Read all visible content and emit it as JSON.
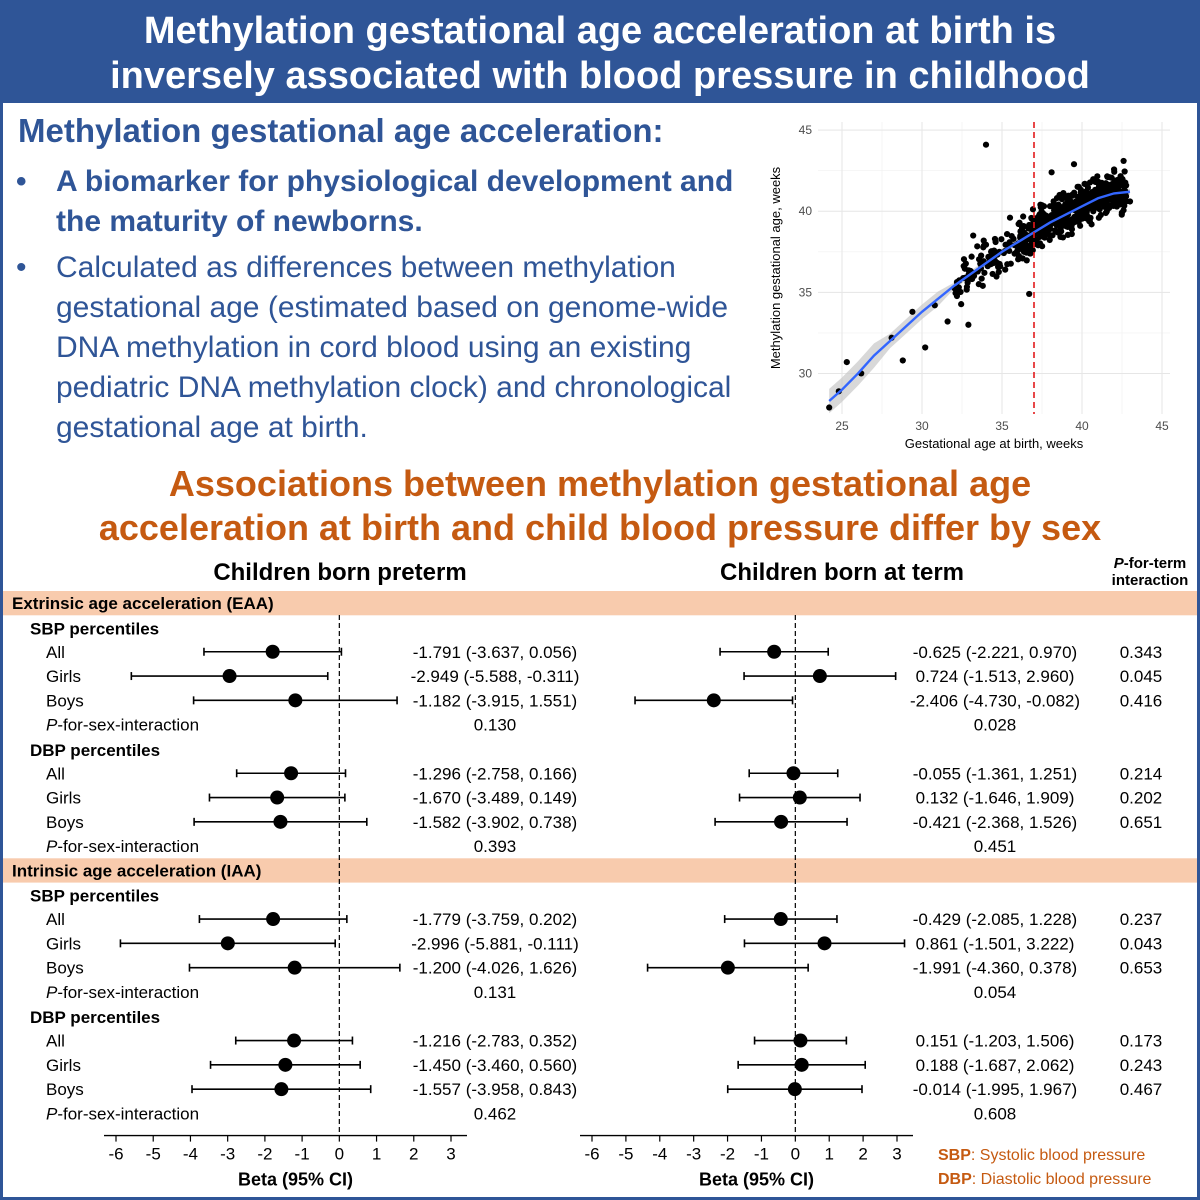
{
  "header": {
    "title_line1": "Methylation gestational age acceleration at birth is",
    "title_line2": "inversely associated with blood pressure in childhood"
  },
  "intro": {
    "title": "Methylation gestational age acceleration:",
    "bullet_symbol": "•",
    "bullet1": "A biomarker for physiological development and the maturity of newborns.",
    "bullet2": "Calculated as differences between methylation gestational age (estimated based on genome-wide DNA methylation in cord blood using an existing pediatric DNA methylation clock) and chronological gestational age at birth."
  },
  "section_title_line1": "Associations between methylation gestational age",
  "section_title_line2": "acceleration at birth and child blood pressure differ by sex",
  "legend": {
    "sbp_abbr": "SBP",
    "sbp_text": ": Systolic blood pressure",
    "dbp_abbr": "DBP",
    "dbp_text": ": Diastolic blood pressure"
  },
  "colors": {
    "brand_blue": "#2f5597",
    "accent_orange": "#c55a11",
    "band_fill": "#f8cbad",
    "fit_line": "#3366ff",
    "threshold_line": "#e31a1c"
  },
  "chart_data": [
    {
      "type": "scatter",
      "title": "",
      "xlabel": "Gestational age at birth, weeks",
      "ylabel": "Methylation gestational age, weeks",
      "xlim": [
        23.5,
        45.5
      ],
      "ylim": [
        27.5,
        45.5
      ],
      "xticks": [
        25,
        30,
        35,
        40,
        45
      ],
      "yticks": [
        30,
        35,
        40,
        45
      ],
      "grid": true,
      "reference_line_x": 37,
      "smooth_fit": {
        "x": [
          24.2,
          25,
          26,
          27,
          28,
          29,
          30,
          31,
          32,
          33,
          34,
          35,
          36,
          37,
          38,
          39,
          40,
          41,
          42,
          43
        ],
        "y": [
          28.3,
          29.0,
          30.0,
          31.1,
          32.0,
          32.9,
          33.8,
          34.6,
          35.4,
          36.1,
          36.8,
          37.5,
          38.1,
          38.7,
          39.3,
          39.8,
          40.3,
          40.8,
          41.1,
          41.2
        ]
      },
      "points_listed": [
        [
          24.2,
          27.9
        ],
        [
          24.8,
          28.9
        ],
        [
          25.3,
          30.7
        ],
        [
          26.2,
          30.0
        ],
        [
          28.1,
          32.2
        ],
        [
          28.8,
          30.8
        ],
        [
          29.4,
          33.8
        ],
        [
          30.2,
          31.6
        ],
        [
          30.8,
          34.2
        ],
        [
          31.6,
          33.2
        ],
        [
          32.3,
          35.3
        ],
        [
          32.9,
          33.0
        ],
        [
          33.1,
          37.2
        ],
        [
          33.8,
          35.4
        ],
        [
          34.0,
          44.1
        ],
        [
          34.6,
          38.1
        ],
        [
          35.2,
          36.4
        ],
        [
          35.8,
          37.9
        ],
        [
          36.3,
          39.0
        ],
        [
          36.8,
          37.6
        ],
        [
          37.4,
          40.4
        ],
        [
          38.0,
          38.9
        ],
        [
          38.6,
          41.0
        ],
        [
          39.2,
          40.3
        ],
        [
          39.8,
          41.5
        ],
        [
          40.3,
          40.0
        ],
        [
          40.9,
          41.8
        ],
        [
          41.5,
          40.5
        ],
        [
          42.1,
          41.7
        ],
        [
          42.6,
          43.1
        ],
        [
          43.0,
          40.6
        ],
        [
          38.1,
          42.4
        ],
        [
          39.5,
          42.9
        ],
        [
          33.2,
          38.5
        ],
        [
          35.5,
          39.6
        ],
        [
          36.7,
          34.9
        ]
      ],
      "dense_cloud_note_free": true
    },
    {
      "type": "forest",
      "xlabel": "Beta (95% CI)",
      "xlim": [
        -6,
        3
      ],
      "xticks": [
        -6,
        -5,
        -4,
        -3,
        -2,
        -1,
        0,
        1,
        2,
        3
      ],
      "column_headers": {
        "preterm": "Children born preterm",
        "term": "Children born at term",
        "p_term_1": "P",
        "p_term_2": "-for-term",
        "p_term_3": "interaction"
      },
      "sections": [
        {
          "title": "Extrinsic age acceleration (EAA)",
          "groups": [
            {
              "name": "SBP percentiles",
              "rows": [
                {
                  "label": "All",
                  "preterm": {
                    "est": -1.791,
                    "lo": -3.637,
                    "hi": 0.056,
                    "text": "-1.791 (-3.637, 0.056)"
                  },
                  "term": {
                    "est": -0.625,
                    "lo": -2.221,
                    "hi": 0.97,
                    "text": "-0.625 (-2.221, 0.970)"
                  },
                  "p_term": "0.343"
                },
                {
                  "label": "Girls",
                  "preterm": {
                    "est": -2.949,
                    "lo": -5.588,
                    "hi": -0.311,
                    "text": "-2.949 (-5.588, -0.311)"
                  },
                  "term": {
                    "est": 0.724,
                    "lo": -1.513,
                    "hi": 2.96,
                    "text": "0.724 (-1.513, 2.960)"
                  },
                  "p_term": "0.045"
                },
                {
                  "label": "Boys",
                  "preterm": {
                    "est": -1.182,
                    "lo": -3.915,
                    "hi": 1.551,
                    "text": "-1.182 (-3.915, 1.551)"
                  },
                  "term": {
                    "est": -2.406,
                    "lo": -4.73,
                    "hi": -0.082,
                    "text": "-2.406 (-4.730, -0.082)"
                  },
                  "p_term": "0.416"
                }
              ],
              "p_sex": {
                "label_p": "P",
                "label_rest": "-for-sex-interaction",
                "preterm": "0.130",
                "term": "0.028"
              }
            },
            {
              "name": "DBP percentiles",
              "rows": [
                {
                  "label": "All",
                  "preterm": {
                    "est": -1.296,
                    "lo": -2.758,
                    "hi": 0.166,
                    "text": "-1.296 (-2.758, 0.166)"
                  },
                  "term": {
                    "est": -0.055,
                    "lo": -1.361,
                    "hi": 1.251,
                    "text": "-0.055 (-1.361, 1.251)"
                  },
                  "p_term": "0.214"
                },
                {
                  "label": "Girls",
                  "preterm": {
                    "est": -1.67,
                    "lo": -3.489,
                    "hi": 0.149,
                    "text": "-1.670 (-3.489, 0.149)"
                  },
                  "term": {
                    "est": 0.132,
                    "lo": -1.646,
                    "hi": 1.909,
                    "text": "0.132 (-1.646, 1.909)"
                  },
                  "p_term": "0.202"
                },
                {
                  "label": "Boys",
                  "preterm": {
                    "est": -1.582,
                    "lo": -3.902,
                    "hi": 0.738,
                    "text": "-1.582 (-3.902, 0.738)"
                  },
                  "term": {
                    "est": -0.421,
                    "lo": -2.368,
                    "hi": 1.526,
                    "text": "-0.421 (-2.368, 1.526)"
                  },
                  "p_term": "0.651"
                }
              ],
              "p_sex": {
                "label_p": "P",
                "label_rest": "-for-sex-interaction",
                "preterm": "0.393",
                "term": "0.451"
              }
            }
          ]
        },
        {
          "title": "Intrinsic age acceleration (IAA)",
          "groups": [
            {
              "name": "SBP percentiles",
              "rows": [
                {
                  "label": "All",
                  "preterm": {
                    "est": -1.779,
                    "lo": -3.759,
                    "hi": 0.202,
                    "text": "-1.779 (-3.759, 0.202)"
                  },
                  "term": {
                    "est": -0.429,
                    "lo": -2.085,
                    "hi": 1.228,
                    "text": "-0.429 (-2.085, 1.228)"
                  },
                  "p_term": "0.237"
                },
                {
                  "label": "Girls",
                  "preterm": {
                    "est": -2.996,
                    "lo": -5.881,
                    "hi": -0.111,
                    "text": "-2.996 (-5.881, -0.111)"
                  },
                  "term": {
                    "est": 0.861,
                    "lo": -1.501,
                    "hi": 3.222,
                    "text": "0.861 (-1.501, 3.222)"
                  },
                  "p_term": "0.043"
                },
                {
                  "label": "Boys",
                  "preterm": {
                    "est": -1.2,
                    "lo": -4.026,
                    "hi": 1.626,
                    "text": "-1.200 (-4.026, 1.626)"
                  },
                  "term": {
                    "est": -1.991,
                    "lo": -4.36,
                    "hi": 0.378,
                    "text": "-1.991 (-4.360, 0.378)"
                  },
                  "p_term": "0.653"
                }
              ],
              "p_sex": {
                "label_p": "P",
                "label_rest": "-for-sex-interaction",
                "preterm": "0.131",
                "term": "0.054"
              }
            },
            {
              "name": "DBP percentiles",
              "rows": [
                {
                  "label": "All",
                  "preterm": {
                    "est": -1.216,
                    "lo": -2.783,
                    "hi": 0.352,
                    "text": "-1.216 (-2.783, 0.352)"
                  },
                  "term": {
                    "est": 0.151,
                    "lo": -1.203,
                    "hi": 1.506,
                    "text": "0.151 (-1.203, 1.506)"
                  },
                  "p_term": "0.173"
                },
                {
                  "label": "Girls",
                  "preterm": {
                    "est": -1.45,
                    "lo": -3.46,
                    "hi": 0.56,
                    "text": "-1.450 (-3.460, 0.560)"
                  },
                  "term": {
                    "est": 0.188,
                    "lo": -1.687,
                    "hi": 2.062,
                    "text": "0.188 (-1.687, 2.062)"
                  },
                  "p_term": "0.243"
                },
                {
                  "label": "Boys",
                  "preterm": {
                    "est": -1.557,
                    "lo": -3.958,
                    "hi": 0.843,
                    "text": "-1.557 (-3.958, 0.843)"
                  },
                  "term": {
                    "est": -0.014,
                    "lo": -1.995,
                    "hi": 1.967,
                    "text": "-0.014 (-1.995, 1.967)"
                  },
                  "p_term": "0.467"
                }
              ],
              "p_sex": {
                "label_p": "P",
                "label_rest": "-for-sex-interaction",
                "preterm": "0.462",
                "term": "0.608"
              }
            }
          ]
        }
      ]
    }
  ]
}
